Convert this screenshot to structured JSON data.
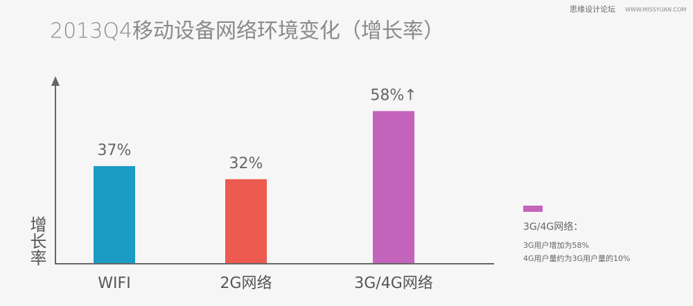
{
  "chart_data": {
    "type": "bar",
    "title": "2013Q4移动设备网络环境变化（增长率）",
    "y_label": "增长率",
    "categories": [
      "WIFI",
      "2G网络",
      "3G/4G网络"
    ],
    "values": [
      37,
      32,
      58
    ],
    "value_labels": [
      "37%",
      "32%",
      "58%↑"
    ],
    "colors": [
      "#1a9bc3",
      "#ed5a4f",
      "#c463bb"
    ],
    "ylim": [
      0,
      70
    ],
    "legend": {
      "title": "3G/4G网络：",
      "notes": [
        "3G用户增加为58%",
        "4G用户量约为3G用户量的10%"
      ]
    }
  },
  "watermark": {
    "site": "思缘设计论坛",
    "url": "WWW.MISSYUAN.COM"
  }
}
